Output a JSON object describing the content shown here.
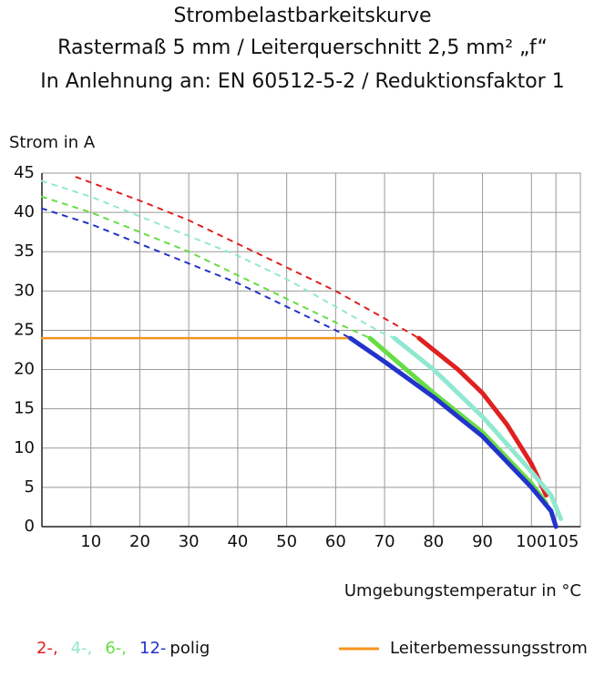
{
  "chart_data": {
    "type": "line",
    "title": "Strombelastbarkeitskurve",
    "subtitle": [
      "Rastermaß 5 mm / Leiterquerschnitt 2,5 mm² „f“",
      "In Anlehnung an: EN 60512-5-2 / Reduktionsfaktor 1"
    ],
    "y_label": "Strom in A",
    "x_label": "Umgebungstemperatur in °C",
    "xlim": [
      0,
      110
    ],
    "ylim": [
      0,
      45
    ],
    "xticks": [
      10,
      20,
      30,
      40,
      50,
      60,
      70,
      80,
      90,
      100,
      105
    ],
    "yticks": [
      0,
      5,
      10,
      15,
      20,
      25,
      30,
      35,
      40,
      45
    ],
    "grid": true,
    "series": [
      {
        "name": "2-,",
        "color": "#e02020",
        "dashed": {
          "x": [
            7,
            20,
            30,
            40,
            50,
            60,
            70,
            77
          ],
          "values": [
            44.5,
            41.5,
            39,
            36,
            33,
            30,
            26.5,
            24
          ]
        },
        "solid": {
          "x": [
            77,
            85,
            90,
            95,
            100,
            103
          ],
          "values": [
            24,
            20,
            17,
            13,
            8,
            4
          ]
        }
      },
      {
        "name": "4-,",
        "color": "#90e8d0",
        "dashed": {
          "x": [
            0,
            10,
            20,
            30,
            40,
            50,
            60,
            70,
            72
          ],
          "values": [
            44,
            42,
            39.5,
            37,
            34.5,
            31.5,
            28,
            24.5,
            24
          ]
        },
        "solid": {
          "x": [
            72,
            80,
            90,
            100,
            104,
            106
          ],
          "values": [
            24,
            20,
            14,
            7,
            4,
            1
          ]
        }
      },
      {
        "name": "6-,",
        "color": "#66dd44",
        "dashed": {
          "x": [
            0,
            10,
            20,
            30,
            40,
            50,
            60,
            67
          ],
          "values": [
            42,
            40,
            37.5,
            35,
            32,
            29,
            26,
            24
          ]
        },
        "solid": {
          "x": [
            67,
            80,
            90,
            100,
            103
          ],
          "values": [
            24,
            17,
            12,
            5.5,
            3
          ]
        }
      },
      {
        "name": "12-",
        "color": "#2233cc",
        "dashed": {
          "x": [
            0,
            10,
            20,
            30,
            40,
            50,
            60,
            63
          ],
          "values": [
            40.5,
            38.5,
            36,
            33.5,
            31,
            28,
            25,
            24
          ]
        },
        "solid": {
          "x": [
            63,
            70,
            80,
            90,
            100,
            104,
            105
          ],
          "values": [
            24,
            21,
            16.5,
            11.5,
            5,
            2,
            0
          ]
        }
      }
    ],
    "legend_suffix": "polig",
    "reference": {
      "name": "Leiterbemessungsstrom",
      "color": "#f7931e",
      "x": [
        0,
        63
      ],
      "values": [
        24,
        24
      ]
    }
  }
}
